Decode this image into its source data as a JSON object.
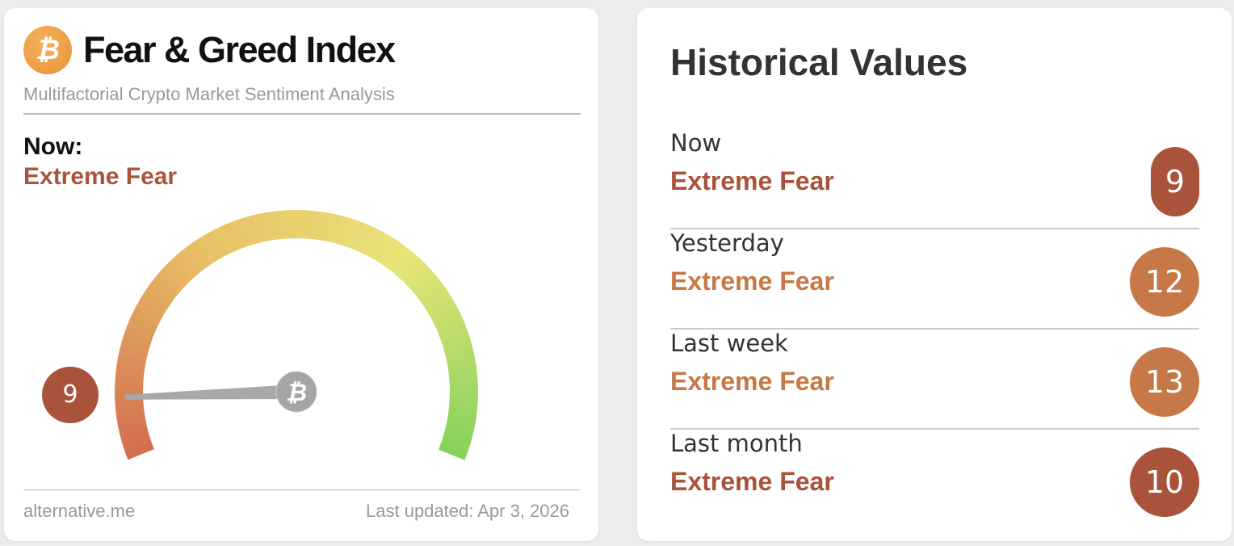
{
  "gauge": {
    "title": "Fear & Greed Index",
    "subtitle": "Multifactorial Crypto Market Sentiment Analysis",
    "now_label": "Now:",
    "now_class": "Extreme Fear",
    "value": "9",
    "value_number": 9,
    "range": [
      0,
      100
    ],
    "logo_icon": "bitcoin-icon",
    "footer_left": "alternative.me",
    "footer_right": "Last updated: Apr 3, 2026"
  },
  "historical": {
    "title": "Historical Values",
    "rows": [
      {
        "label": "Now",
        "class": "Extreme Fear",
        "value": "9",
        "color": "#a9533a"
      },
      {
        "label": "Yesterday",
        "class": "Extreme Fear",
        "value": "12",
        "color": "#c67847"
      },
      {
        "label": "Last week",
        "class": "Extreme Fear",
        "value": "13",
        "color": "#c67847"
      },
      {
        "label": "Last month",
        "class": "Extreme Fear",
        "value": "10",
        "color": "#a9533a"
      }
    ]
  },
  "colors": {
    "extreme_fear_dark": "#a9533a",
    "extreme_fear_light": "#c67847"
  }
}
